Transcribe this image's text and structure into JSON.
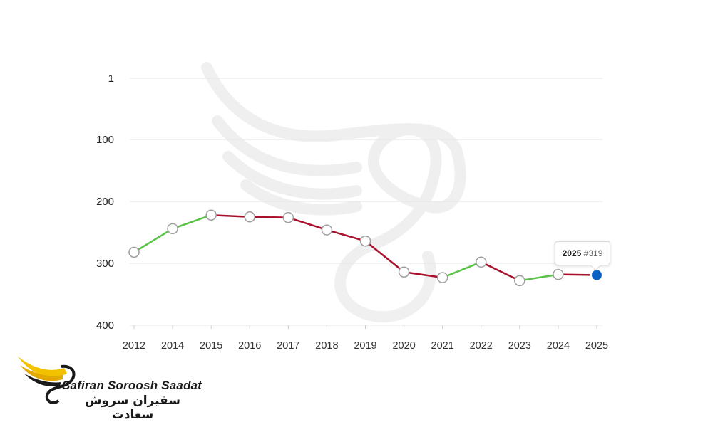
{
  "chart_data": {
    "type": "line",
    "title": "",
    "xlabel": "",
    "ylabel": "",
    "y_inverted": true,
    "ylim": [
      1,
      400
    ],
    "y_ticks": [
      "1",
      "100",
      "200",
      "300",
      "400"
    ],
    "y_tick_values": [
      1,
      100,
      200,
      300,
      400
    ],
    "categories": [
      "2012",
      "2014",
      "2015",
      "2016",
      "2017",
      "2018",
      "2019",
      "2020",
      "2021",
      "2022",
      "2023",
      "2024",
      "2025"
    ],
    "values": [
      282,
      244,
      222,
      225,
      226,
      246,
      264,
      314,
      323,
      298,
      328,
      318,
      319
    ],
    "grid": true,
    "colors": {
      "improve": "#5cc24a",
      "decline": "#a8102c",
      "point_fill": "#ffffff",
      "point_stroke": "#9e9e9e",
      "highlight": "#0d63c4"
    },
    "tooltip": {
      "year": "2025",
      "rank": "#319"
    }
  },
  "brand": {
    "name_en": "Safiran Soroosh Saadat",
    "name_fa": "سفیران سروش سعادت"
  }
}
